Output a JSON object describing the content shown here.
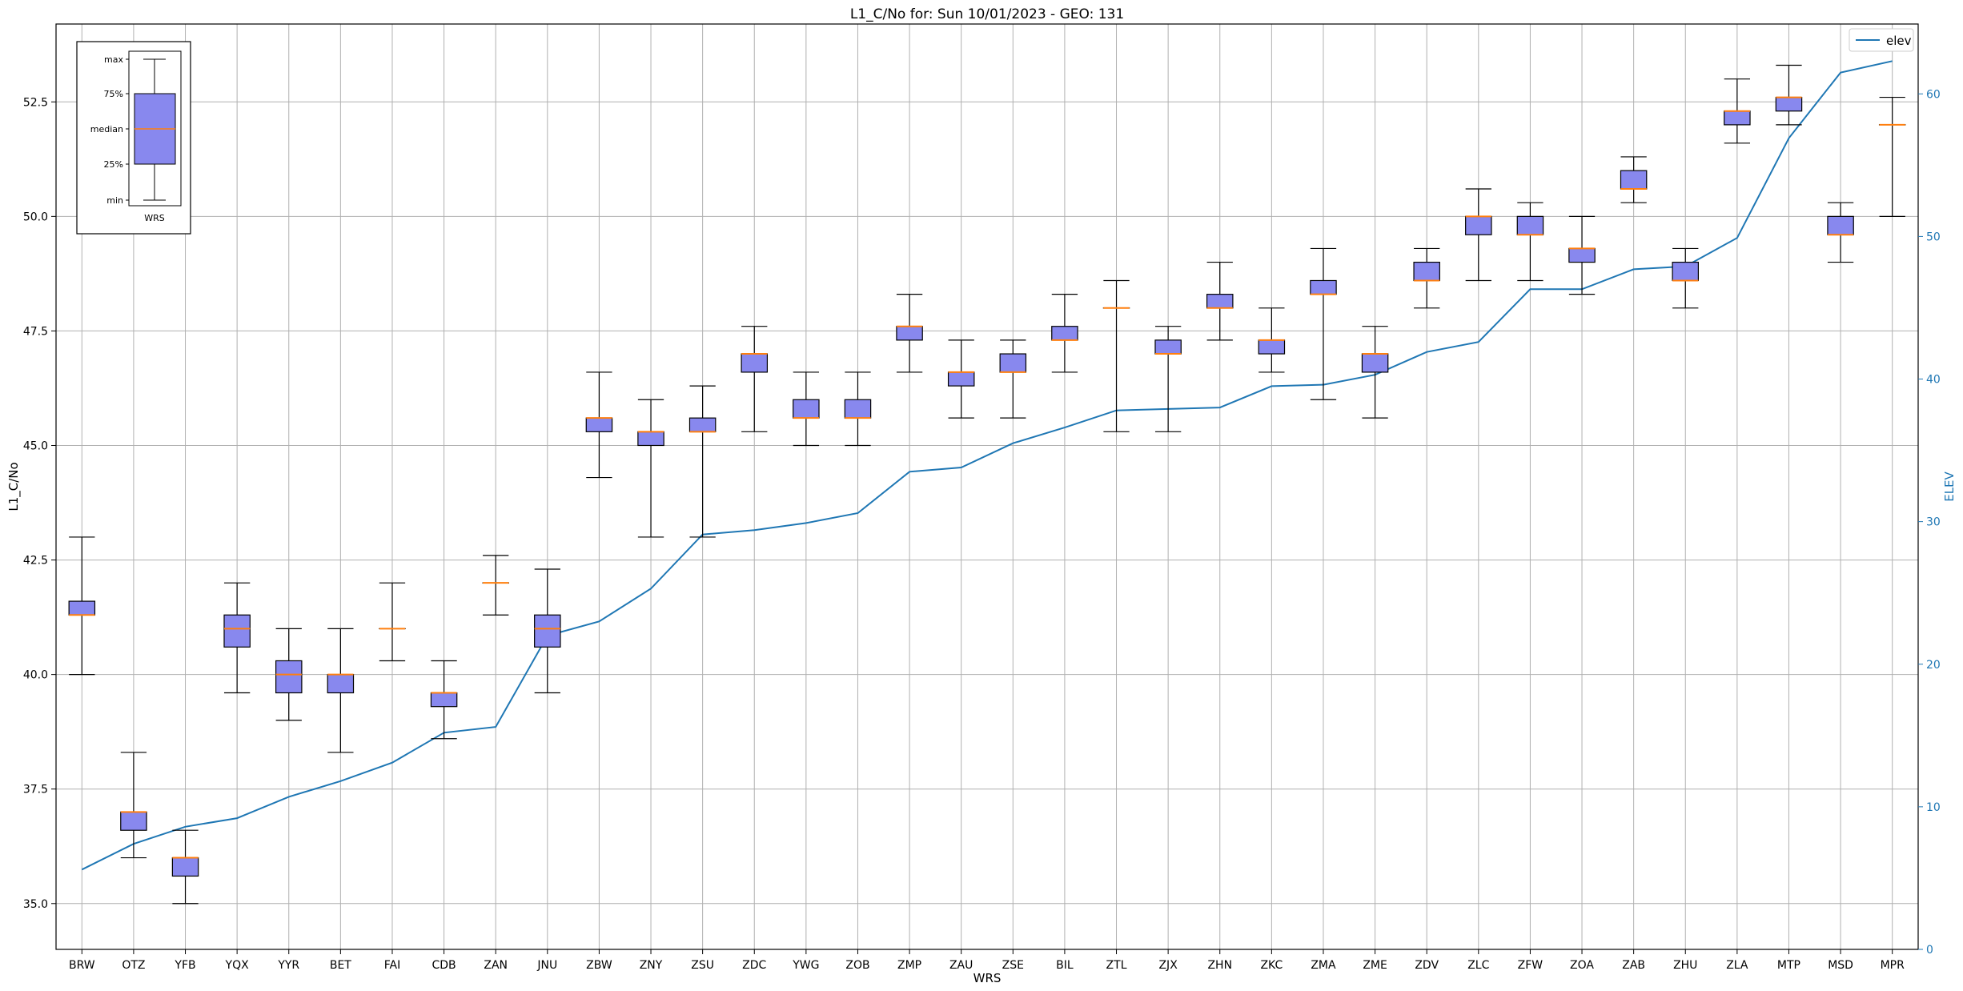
{
  "chart_data": {
    "type": "box",
    "title": "L1_C/No for: Sun 10/01/2023 - GEO: 131",
    "xlabel": "WRS",
    "ylabel": "L1_C/No",
    "y2label": "ELEV",
    "ylim": [
      34.0,
      54.2
    ],
    "y2lim": [
      0,
      64.9
    ],
    "yticks": [
      35.0,
      37.5,
      40.0,
      42.5,
      45.0,
      47.5,
      50.0,
      52.5
    ],
    "ytick_labels": [
      "35.0",
      "37.5",
      "40.0",
      "42.5",
      "45.0",
      "47.5",
      "50.0",
      "52.5"
    ],
    "y2ticks": [
      0,
      10,
      20,
      30,
      40,
      50,
      60
    ],
    "y2tick_labels": [
      "0",
      "10",
      "20",
      "30",
      "40",
      "50",
      "60"
    ],
    "grid": true,
    "legend": {
      "position": "top-right",
      "entries": [
        {
          "label": "elev",
          "color": "#1f77b4"
        }
      ]
    },
    "box_color": "#8888ee",
    "median_color": "#ff7f0e",
    "line_color": "#1f77b4",
    "axis2_color": "#1f77b4",
    "categories": [
      "BRW",
      "OTZ",
      "YFB",
      "YQX",
      "YYR",
      "BET",
      "FAI",
      "CDB",
      "ZAN",
      "JNU",
      "ZBW",
      "ZNY",
      "ZSU",
      "ZDC",
      "YWG",
      "ZOB",
      "ZMP",
      "ZAU",
      "ZSE",
      "BIL",
      "ZTL",
      "ZJX",
      "ZHN",
      "ZKC",
      "ZMA",
      "ZME",
      "ZDV",
      "ZLC",
      "ZFW",
      "ZOA",
      "ZAB",
      "ZHU",
      "ZLA",
      "MTP",
      "MSD",
      "MPR"
    ],
    "boxes": [
      {
        "min": 40.0,
        "q1": 41.3,
        "median": 41.3,
        "q3": 41.6,
        "max": 43.0
      },
      {
        "min": 36.0,
        "q1": 36.6,
        "median": 37.0,
        "q3": 37.0,
        "max": 38.3
      },
      {
        "min": 35.0,
        "q1": 35.6,
        "median": 36.0,
        "q3": 36.0,
        "max": 36.6
      },
      {
        "min": 39.6,
        "q1": 40.6,
        "median": 41.0,
        "q3": 41.3,
        "max": 42.0
      },
      {
        "min": 39.0,
        "q1": 39.6,
        "median": 40.0,
        "q3": 40.3,
        "max": 41.0
      },
      {
        "min": 38.3,
        "q1": 39.6,
        "median": 40.0,
        "q3": 40.0,
        "max": 41.0
      },
      {
        "min": 40.3,
        "q1": 41.0,
        "median": 41.0,
        "q3": 41.0,
        "max": 42.0
      },
      {
        "min": 38.6,
        "q1": 39.3,
        "median": 39.6,
        "q3": 39.6,
        "max": 40.3
      },
      {
        "min": 41.3,
        "q1": 42.0,
        "median": 42.0,
        "q3": 42.0,
        "max": 42.6
      },
      {
        "min": 39.6,
        "q1": 40.6,
        "median": 41.0,
        "q3": 41.3,
        "max": 42.3
      },
      {
        "min": 44.3,
        "q1": 45.3,
        "median": 45.6,
        "q3": 45.6,
        "max": 46.6
      },
      {
        "min": 43.0,
        "q1": 45.0,
        "median": 45.3,
        "q3": 45.3,
        "max": 46.0
      },
      {
        "min": 43.0,
        "q1": 45.3,
        "median": 45.3,
        "q3": 45.6,
        "max": 46.3
      },
      {
        "min": 45.3,
        "q1": 46.6,
        "median": 47.0,
        "q3": 47.0,
        "max": 47.6
      },
      {
        "min": 45.0,
        "q1": 45.6,
        "median": 45.6,
        "q3": 46.0,
        "max": 46.6
      },
      {
        "min": 45.0,
        "q1": 45.6,
        "median": 45.6,
        "q3": 46.0,
        "max": 46.6
      },
      {
        "min": 46.6,
        "q1": 47.3,
        "median": 47.6,
        "q3": 47.6,
        "max": 48.3
      },
      {
        "min": 45.6,
        "q1": 46.3,
        "median": 46.6,
        "q3": 46.6,
        "max": 47.3
      },
      {
        "min": 45.6,
        "q1": 46.6,
        "median": 46.6,
        "q3": 47.0,
        "max": 47.3
      },
      {
        "min": 46.6,
        "q1": 47.3,
        "median": 47.3,
        "q3": 47.6,
        "max": 48.3
      },
      {
        "min": 45.3,
        "q1": 48.0,
        "median": 48.0,
        "q3": 48.0,
        "max": 48.6
      },
      {
        "min": 45.3,
        "q1": 47.0,
        "median": 47.0,
        "q3": 47.3,
        "max": 47.6
      },
      {
        "min": 47.3,
        "q1": 48.0,
        "median": 48.0,
        "q3": 48.3,
        "max": 49.0
      },
      {
        "min": 46.6,
        "q1": 47.0,
        "median": 47.3,
        "q3": 47.3,
        "max": 48.0
      },
      {
        "min": 46.0,
        "q1": 48.3,
        "median": 48.3,
        "q3": 48.6,
        "max": 49.3
      },
      {
        "min": 45.6,
        "q1": 46.6,
        "median": 47.0,
        "q3": 47.0,
        "max": 47.6
      },
      {
        "min": 48.0,
        "q1": 48.6,
        "median": 48.6,
        "q3": 49.0,
        "max": 49.3
      },
      {
        "min": 48.6,
        "q1": 49.6,
        "median": 50.0,
        "q3": 50.0,
        "max": 50.6
      },
      {
        "min": 48.6,
        "q1": 49.6,
        "median": 49.6,
        "q3": 50.0,
        "max": 50.3
      },
      {
        "min": 48.3,
        "q1": 49.0,
        "median": 49.3,
        "q3": 49.3,
        "max": 50.0
      },
      {
        "min": 50.3,
        "q1": 50.6,
        "median": 50.6,
        "q3": 51.0,
        "max": 51.3
      },
      {
        "min": 48.0,
        "q1": 48.6,
        "median": 48.6,
        "q3": 49.0,
        "max": 49.3
      },
      {
        "min": 51.6,
        "q1": 52.0,
        "median": 52.3,
        "q3": 52.3,
        "max": 53.0
      },
      {
        "min": 52.0,
        "q1": 52.3,
        "median": 52.6,
        "q3": 52.6,
        "max": 53.3
      },
      {
        "min": 49.0,
        "q1": 49.6,
        "median": 49.6,
        "q3": 50.0,
        "max": 50.3
      },
      {
        "min": 50.0,
        "q1": 52.0,
        "median": 52.0,
        "q3": 52.0,
        "max": 52.6
      }
    ],
    "elev": [
      5.6,
      7.4,
      8.6,
      9.2,
      10.7,
      11.8,
      13.1,
      15.2,
      15.6,
      22.0,
      23.0,
      25.3,
      29.1,
      29.4,
      29.9,
      30.6,
      33.5,
      33.8,
      35.5,
      36.6,
      37.8,
      37.9,
      38.0,
      39.5,
      39.6,
      40.3,
      41.9,
      42.6,
      46.3,
      46.3,
      47.7,
      47.9,
      49.9,
      56.9,
      61.5,
      62.3
    ],
    "inset": {
      "tick_labels": [
        "max",
        "75%",
        "median",
        "25%",
        "min"
      ],
      "xlabel": "WRS"
    }
  }
}
